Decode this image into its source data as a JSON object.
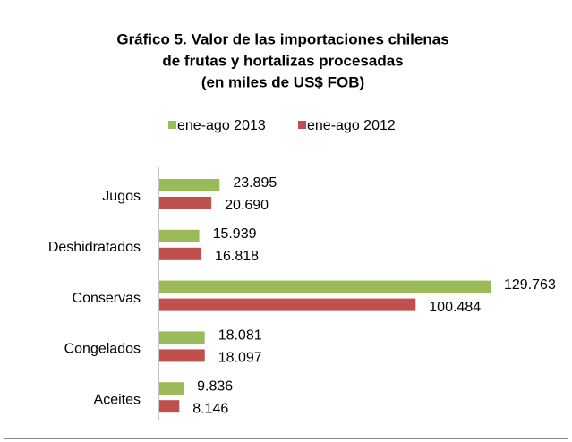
{
  "chart_data": {
    "type": "hbar",
    "title": "Gráfico 5. Valor de las importaciones chilenas",
    "subtitle": "de frutas y hortalizas procesadas",
    "subtitle2": "(en miles de US$ FOB)",
    "categories": [
      "Jugos",
      "Deshidratados",
      "Conservas",
      "Congelados",
      "Aceites"
    ],
    "series": [
      {
        "name": "ene-ago 2013",
        "color": "#9bbb59",
        "values": [
          23895,
          15939,
          129763,
          18081,
          9836
        ],
        "value_labels": [
          "23.895",
          "15.939",
          "129.763",
          "18.081",
          "9.836"
        ]
      },
      {
        "name": "ene-ago 2012",
        "color": "#c0504d",
        "values": [
          20690,
          16818,
          100484,
          18097,
          8146
        ],
        "value_labels": [
          "20.690",
          "16.818",
          "100.484",
          "18.097",
          "8.146"
        ]
      }
    ]
  }
}
